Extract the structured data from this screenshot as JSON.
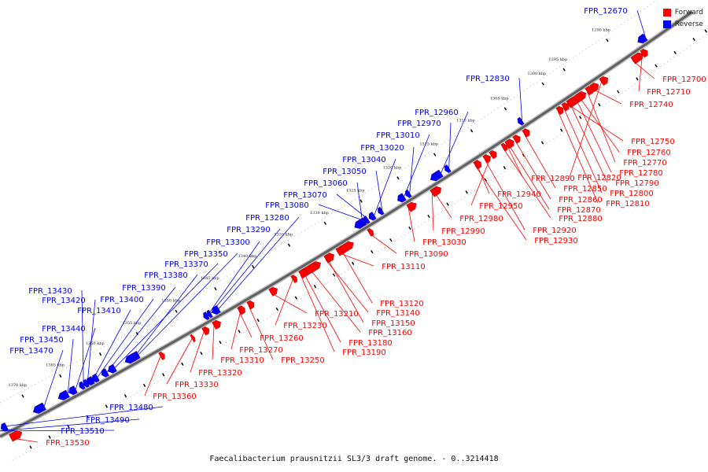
{
  "caption": "Faecalibacterium prausnitzii SL3/3 draft genome. - 0..3214418",
  "legend": {
    "forward_label": "Forward",
    "reverse_label": "Reverse",
    "forward_color": "#ff0000",
    "reverse_color": "#0000ff"
  },
  "colors": {
    "forward": "#ff0000",
    "reverse": "#0000ff",
    "backbone": "#606060"
  },
  "kbp_ticks": [
    "1290 kbp",
    "1295 kbp",
    "1300 kbp",
    "1305 kbp",
    "1310 kbp",
    "1315 kbp",
    "1320 kbp",
    "1325 kbp",
    "1330 kbp",
    "1335 kbp",
    "1340 kbp",
    "1345 kbp",
    "1350 kbp",
    "1355 kbp",
    "1360 kbp",
    "1365 kbp",
    "1370 kbp"
  ],
  "reverse_genes": [
    "FPR_12670",
    "FPR_12830",
    "FPR_12960",
    "FPR_12970",
    "FPR_13010",
    "FPR_13020",
    "FPR_13040",
    "FPR_13050",
    "FPR_13060",
    "FPR_13070",
    "FPR_13080",
    "FPR_13280",
    "FPR_13290",
    "FPR_13300",
    "FPR_13350",
    "FPR_13370",
    "FPR_13380",
    "FPR_13390",
    "FPR_13400",
    "FPR_13410",
    "FPR_13420",
    "FPR_13430",
    "FPR_13440",
    "FPR_13450",
    "FPR_13470",
    "FPR_13480",
    "FPR_13490",
    "FPR_13510"
  ],
  "forward_genes": [
    "FPR_12700",
    "FPR_12710",
    "FPR_12740",
    "FPR_12750",
    "FPR_12760",
    "FPR_12770",
    "FPR_12780",
    "FPR_12790",
    "FPR_12800",
    "FPR_12810",
    "FPR_12820",
    "FPR_12850",
    "FPR_12860",
    "FPR_12870",
    "FPR_12880",
    "FPR_12890",
    "FPR_12920",
    "FPR_12930",
    "FPR_12940",
    "FPR_12950",
    "FPR_12980",
    "FPR_12990",
    "FPR_13030",
    "FPR_13090",
    "FPR_13110",
    "FPR_13120",
    "FPR_13140",
    "FPR_13150",
    "FPR_13160",
    "FPR_13180",
    "FPR_13190",
    "FPR_13210",
    "FPR_13230",
    "FPR_13250",
    "FPR_13260",
    "FPR_13270",
    "FPR_13310",
    "FPR_13320",
    "FPR_13330",
    "FPR_13360",
    "FPR_13530"
  ]
}
